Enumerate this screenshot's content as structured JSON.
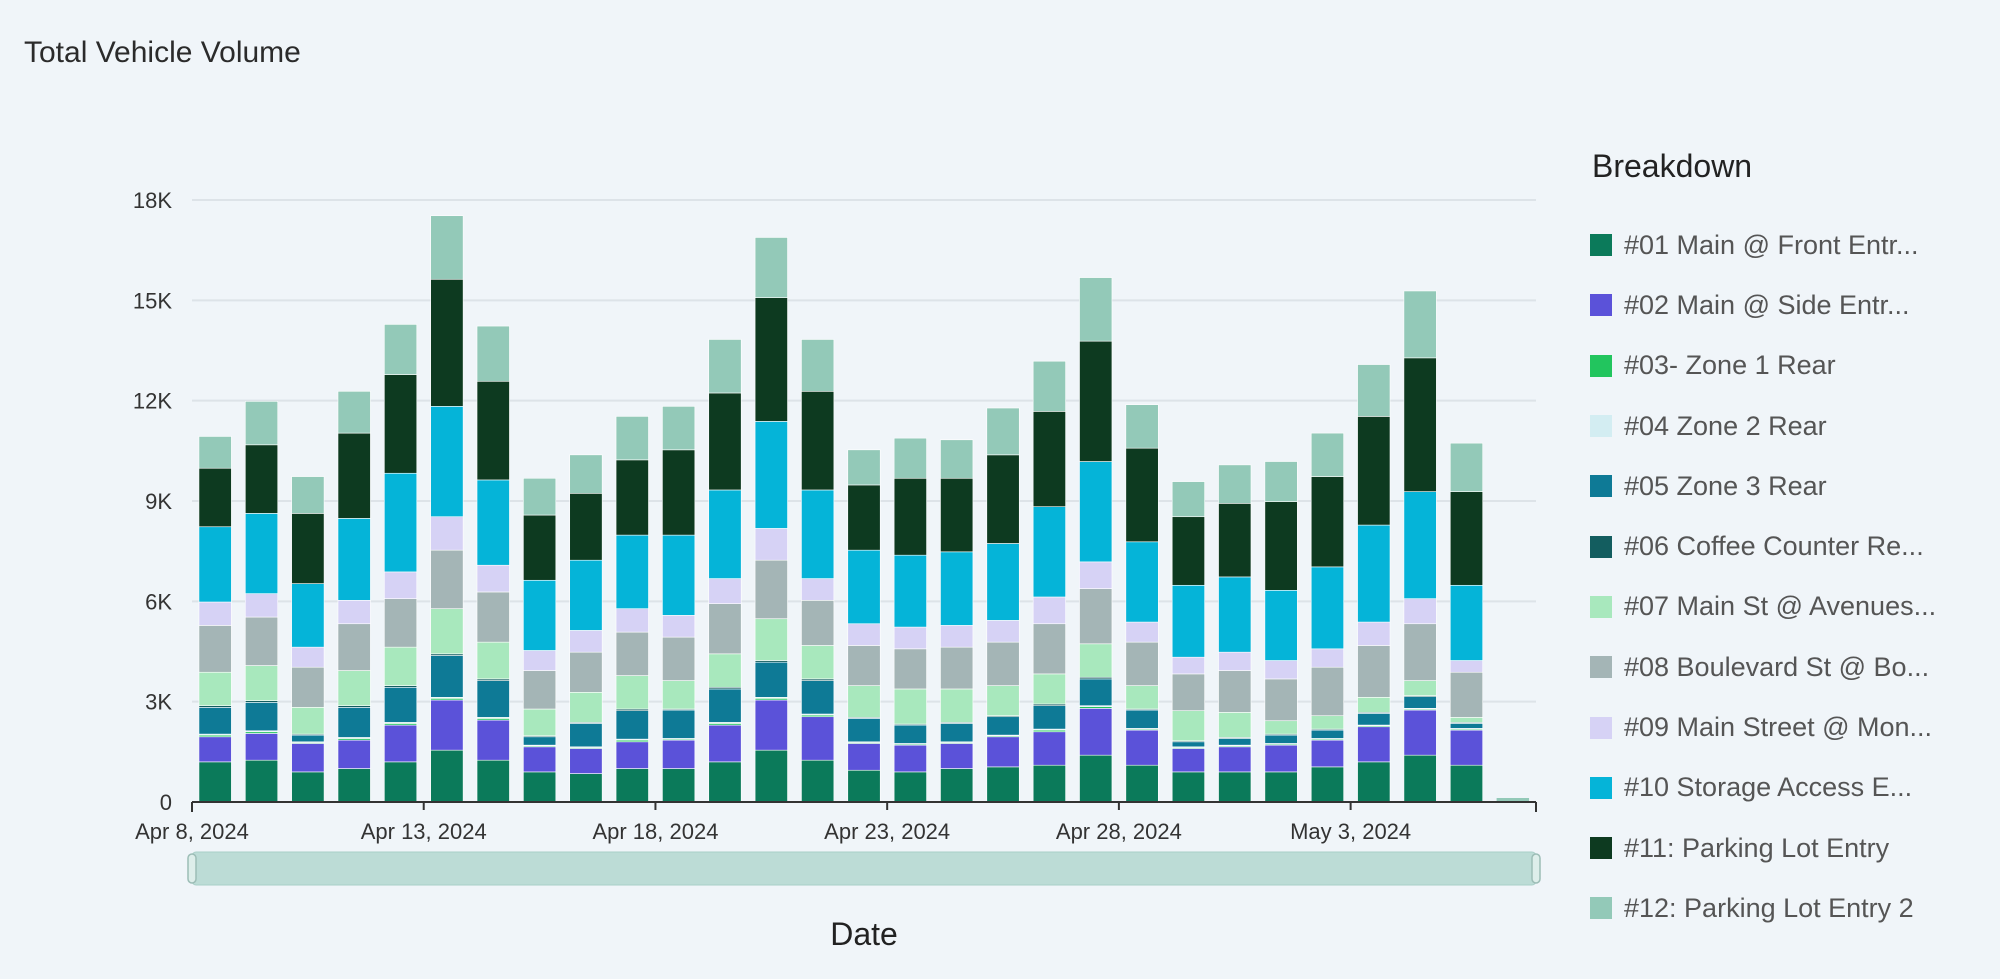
{
  "chart_data": {
    "type": "bar",
    "stacked": true,
    "title": "Total Vehicle Volume",
    "xlabel": "Date",
    "ylabel": "",
    "ylim": [
      0,
      18000
    ],
    "yticks": [
      0,
      3000,
      6000,
      9000,
      12000,
      15000,
      18000
    ],
    "ytick_labels": [
      "0",
      "3K",
      "6K",
      "9K",
      "12K",
      "15K",
      "18K"
    ],
    "xtick_labels": [
      {
        "label": "Apr 8, 2024",
        "index": 0
      },
      {
        "label": "Apr 13, 2024",
        "index": 5
      },
      {
        "label": "Apr 18, 2024",
        "index": 10
      },
      {
        "label": "Apr 23, 2024",
        "index": 15
      },
      {
        "label": "Apr 28, 2024",
        "index": 20
      },
      {
        "label": "May 3, 2024",
        "index": 25
      }
    ],
    "categories": [
      "Apr 8",
      "Apr 9",
      "Apr 10",
      "Apr 11",
      "Apr 12",
      "Apr 13",
      "Apr 14",
      "Apr 15",
      "Apr 16",
      "Apr 17",
      "Apr 18",
      "Apr 19",
      "Apr 20",
      "Apr 21",
      "Apr 22",
      "Apr 23",
      "Apr 24",
      "Apr 25",
      "Apr 26",
      "Apr 27",
      "Apr 28",
      "Apr 29",
      "Apr 30",
      "May 1",
      "May 2",
      "May 3",
      "May 4",
      "May 5",
      "May 6"
    ],
    "legend_title": "Breakdown",
    "series": [
      {
        "name": "#01 Main @ Front Entr...",
        "color": "#0b7a5a",
        "values": [
          1200,
          1250,
          900,
          1000,
          1200,
          1550,
          1250,
          900,
          850,
          1000,
          1000,
          1200,
          1550,
          1250,
          950,
          900,
          1000,
          1050,
          1100,
          1400,
          1100,
          900,
          900,
          900,
          1050,
          1200,
          1400,
          1100,
          0
        ]
      },
      {
        "name": "#02 Main @ Side Entr...",
        "color": "#5b52d9",
        "values": [
          750,
          800,
          850,
          850,
          1100,
          1500,
          1200,
          750,
          750,
          800,
          850,
          1100,
          1500,
          1300,
          800,
          800,
          750,
          900,
          1000,
          1400,
          1050,
          700,
          750,
          800,
          800,
          1050,
          1350,
          1050,
          0
        ]
      },
      {
        "name": "#03- Zone 1 Rear",
        "color": "#22c55e",
        "values": [
          50,
          50,
          30,
          50,
          50,
          50,
          50,
          30,
          30,
          50,
          30,
          50,
          50,
          50,
          30,
          30,
          30,
          30,
          50,
          50,
          30,
          30,
          30,
          30,
          30,
          30,
          30,
          30,
          0
        ]
      },
      {
        "name": "#04 Zone 2 Rear",
        "color": "#d3edf2",
        "values": [
          30,
          30,
          20,
          30,
          30,
          30,
          30,
          20,
          20,
          30,
          20,
          30,
          30,
          30,
          20,
          20,
          20,
          20,
          30,
          30,
          20,
          20,
          20,
          20,
          20,
          20,
          20,
          20,
          0
        ]
      },
      {
        "name": "#05 Zone 3 Rear",
        "color": "#0e7a96",
        "values": [
          800,
          850,
          200,
          900,
          1050,
          1250,
          1100,
          250,
          700,
          850,
          850,
          1000,
          1050,
          1000,
          700,
          550,
          550,
          550,
          700,
          800,
          550,
          150,
          200,
          250,
          250,
          350,
          350,
          150,
          0
        ]
      },
      {
        "name": "#06 Coffee Counter Re...",
        "color": "#135d5f",
        "values": [
          50,
          50,
          30,
          50,
          50,
          50,
          50,
          30,
          30,
          50,
          30,
          50,
          50,
          50,
          30,
          30,
          30,
          30,
          50,
          50,
          30,
          30,
          30,
          30,
          30,
          30,
          30,
          30,
          0
        ]
      },
      {
        "name": "#07 Main St @ Avenues...",
        "color": "#a8e8bd",
        "values": [
          1000,
          1050,
          800,
          1050,
          1150,
          1350,
          1100,
          800,
          900,
          1000,
          850,
          1000,
          1250,
          1000,
          950,
          1050,
          1000,
          900,
          900,
          1000,
          700,
          900,
          750,
          400,
          400,
          450,
          450,
          150,
          0
        ]
      },
      {
        "name": "#08 Boulevard St @ Bo...",
        "color": "#a4b5b6",
        "values": [
          1400,
          1450,
          1200,
          1400,
          1450,
          1750,
          1500,
          1150,
          1200,
          1300,
          1300,
          1500,
          1750,
          1350,
          1200,
          1200,
          1250,
          1300,
          1500,
          1650,
          1300,
          1100,
          1250,
          1250,
          1450,
          1550,
          1700,
          1350,
          0
        ]
      },
      {
        "name": "#09 Main Street @ Mon...",
        "color": "#d6d2f5",
        "values": [
          700,
          700,
          600,
          700,
          800,
          1000,
          800,
          600,
          650,
          700,
          650,
          750,
          950,
          650,
          650,
          650,
          650,
          650,
          800,
          800,
          600,
          500,
          550,
          550,
          550,
          700,
          750,
          350,
          0
        ]
      },
      {
        "name": "#10 Storage Access E...",
        "color": "#05b4d8",
        "values": [
          2250,
          2400,
          1900,
          2450,
          2950,
          3300,
          2550,
          2100,
          2100,
          2200,
          2400,
          2650,
          3200,
          2650,
          2200,
          2150,
          2200,
          2300,
          2700,
          3000,
          2400,
          2150,
          2250,
          2100,
          2450,
          2900,
          3200,
          2250,
          0
        ]
      },
      {
        "name": "#11: Parking Lot Entry",
        "color": "#0d3a20",
        "values": [
          1750,
          2050,
          2100,
          2550,
          2950,
          3800,
          2950,
          1950,
          2000,
          2250,
          2550,
          2900,
          3700,
          2950,
          1950,
          2300,
          2200,
          2650,
          2850,
          3600,
          2800,
          2050,
          2200,
          2650,
          2700,
          3250,
          4000,
          2800,
          0
        ]
      },
      {
        "name": "#12: Parking Lot Entry 2",
        "color": "#93c9b8",
        "values": [
          950,
          1300,
          1100,
          1250,
          1500,
          1900,
          1650,
          1100,
          1150,
          1300,
          1300,
          1600,
          1800,
          1550,
          1050,
          1200,
          1150,
          1400,
          1500,
          1900,
          1300,
          1050,
          1150,
          1200,
          1300,
          1550,
          2000,
          1450,
          0
        ]
      }
    ]
  }
}
